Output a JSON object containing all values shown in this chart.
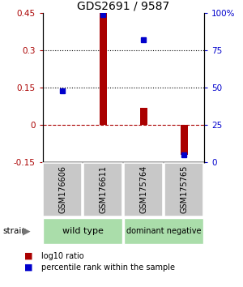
{
  "title": "GDS2691 / 9587",
  "samples": [
    "GSM176606",
    "GSM176611",
    "GSM175764",
    "GSM175765"
  ],
  "log10_ratio": [
    0.0,
    0.45,
    0.07,
    -0.12
  ],
  "pct_rank": [
    48,
    99,
    82,
    5
  ],
  "ylim_left": [
    -0.15,
    0.45
  ],
  "ylim_right": [
    0,
    100
  ],
  "yticks_left": [
    -0.15,
    0.0,
    0.15,
    0.3,
    0.45
  ],
  "ytick_labels_left": [
    "-0.15",
    "0",
    "0.15",
    "0.3",
    "0.45"
  ],
  "yticks_right": [
    0,
    25,
    50,
    75,
    100
  ],
  "ytick_labels_right": [
    "0",
    "25",
    "50",
    "75",
    "100%"
  ],
  "hlines": [
    0.15,
    0.3
  ],
  "hline_zero": 0.0,
  "bar_color_red": "#aa0000",
  "bar_color_blue": "#0000cc",
  "bar_width": 0.18,
  "background_gray": "#c8c8c8",
  "background_group": "#aaddaa",
  "legend_red_label": "log10 ratio",
  "legend_blue_label": "percentile rank within the sample",
  "title_fontsize": 10,
  "tick_fontsize": 7.5,
  "sample_fontsize": 7,
  "group_fontsize": 8,
  "legend_fontsize": 7
}
